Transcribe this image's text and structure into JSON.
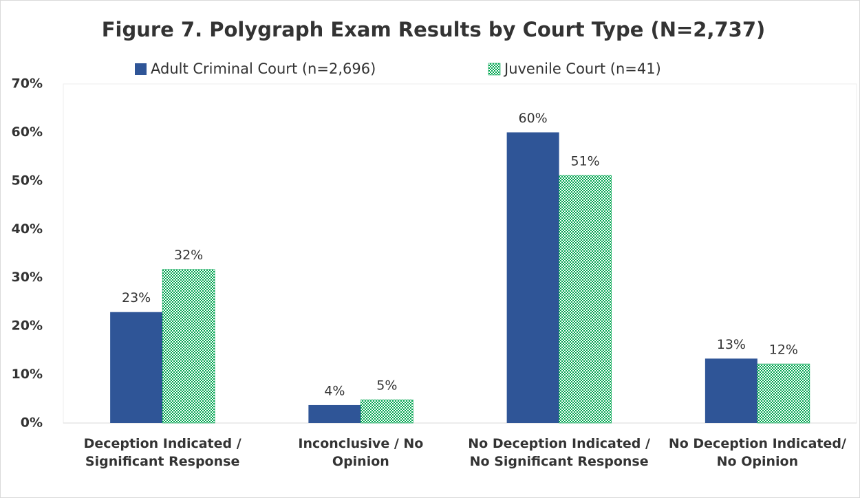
{
  "chart_data": {
    "type": "bar",
    "title": "Figure 7. Polygraph Exam Results by Court Type (N=2,737)",
    "categories": [
      "Deception Indicated / Significant Response",
      "Inconclusive / No Opinion",
      "No Deception Indicated / No Significant Response",
      "No Deception Indicated/ No Opinion"
    ],
    "series": [
      {
        "name": "Adult Criminal Court (n=2,696)",
        "color": "#2f5597",
        "values": [
          22.9,
          3.7,
          60.0,
          13.3
        ],
        "value_labels": [
          "23%",
          "4%",
          "60%",
          "13%"
        ]
      },
      {
        "name": "Juvenile Court (n=41)",
        "color": "#00a550",
        "pattern": "checker",
        "values": [
          31.7,
          4.8,
          51.1,
          12.2
        ],
        "value_labels": [
          "32%",
          "5%",
          "51%",
          "12%"
        ]
      }
    ],
    "ylim": [
      0,
      70
    ],
    "yticks": [
      {
        "value": 0,
        "label": "0%"
      },
      {
        "value": 10,
        "label": "10%"
      },
      {
        "value": 20,
        "label": "20%"
      },
      {
        "value": 30,
        "label": "30%"
      },
      {
        "value": 40,
        "label": "40%"
      },
      {
        "value": 50,
        "label": "50%"
      },
      {
        "value": 60,
        "label": "60%"
      },
      {
        "value": 70,
        "label": "70%"
      }
    ],
    "grid": false,
    "legend": "top"
  }
}
